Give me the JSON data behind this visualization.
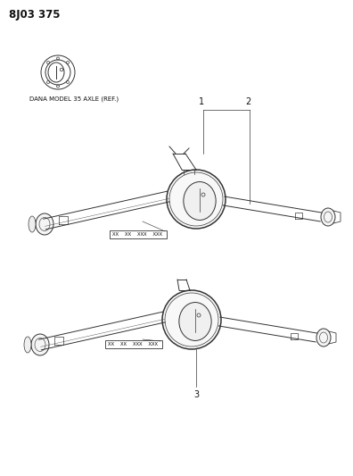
{
  "title_code": "8J03 375",
  "background_color": "#ffffff",
  "text_color": "#111111",
  "label_dana": "DANA MODEL 35 AXLE (REF.)",
  "tag_text_top": "XX  XX  XXX  XXX",
  "tag_text_bot": "XX  XX  XXX  XXX",
  "line_color": "#333333",
  "title_fontsize": 8.5,
  "label_fontsize": 6.0,
  "part1_label": "1",
  "part2_label": "2",
  "part3_label": "3"
}
